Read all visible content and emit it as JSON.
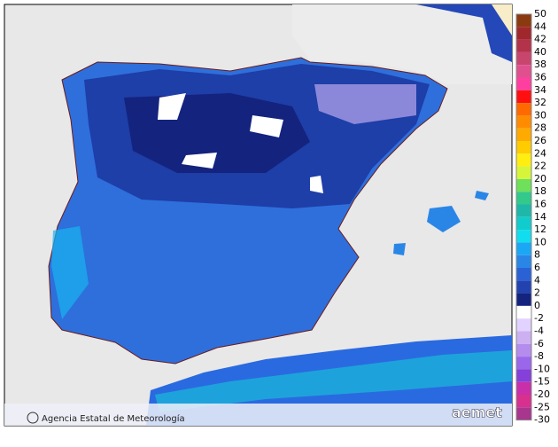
{
  "footer": {
    "agency": "Agencia Estatal de Meteorología",
    "logo": "aemet"
  },
  "legend": [
    {
      "label": "50",
      "color": "#8b3a0f"
    },
    {
      "label": "44",
      "color": "#a0282d"
    },
    {
      "label": "42",
      "color": "#b3334a"
    },
    {
      "label": "40",
      "color": "#c8456e"
    },
    {
      "label": "38",
      "color": "#e0508e"
    },
    {
      "label": "36",
      "color": "#ff3fa0"
    },
    {
      "label": "34",
      "color": "#ff1010"
    },
    {
      "label": "32",
      "color": "#ff6a00"
    },
    {
      "label": "30",
      "color": "#ff8c00"
    },
    {
      "label": "28",
      "color": "#ffaa00"
    },
    {
      "label": "26",
      "color": "#ffcc00"
    },
    {
      "label": "24",
      "color": "#ffee10"
    },
    {
      "label": "22",
      "color": "#d6f53a"
    },
    {
      "label": "20",
      "color": "#6ee05a"
    },
    {
      "label": "18",
      "color": "#33c98a"
    },
    {
      "label": "16",
      "color": "#1fb8a8"
    },
    {
      "label": "14",
      "color": "#10cccc"
    },
    {
      "label": "12",
      "color": "#12ddee"
    },
    {
      "label": "10",
      "color": "#1aa8f5"
    },
    {
      "label": "8",
      "color": "#2a86e6"
    },
    {
      "label": "6",
      "color": "#2a62d6"
    },
    {
      "label": "4",
      "color": "#2242b0"
    },
    {
      "label": "2",
      "color": "#14237e"
    },
    {
      "label": "0",
      "color": "#ffffff"
    },
    {
      "label": "-2",
      "color": "#e2d2ff"
    },
    {
      "label": "-4",
      "color": "#ccb0f2"
    },
    {
      "label": "-6",
      "color": "#b48cee"
    },
    {
      "label": "-8",
      "color": "#9a66ea"
    },
    {
      "label": "-10",
      "color": "#8440d8"
    },
    {
      "label": "-15",
      "color": "#c82fa8"
    },
    {
      "label": "-20",
      "color": "#d8308e"
    },
    {
      "label": "-25",
      "color": "#a8358e"
    },
    {
      "label": "-30",
      "color": "#7c4696"
    }
  ]
}
